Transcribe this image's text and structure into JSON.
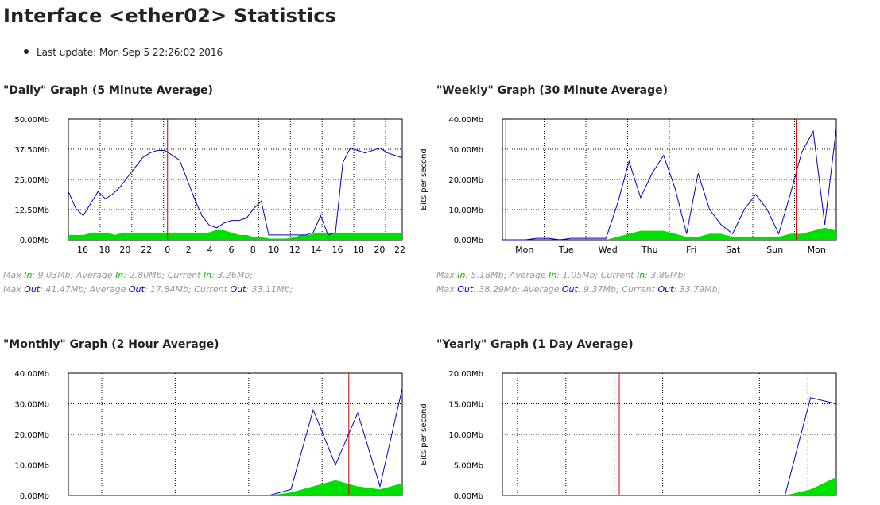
{
  "title": "Interface <ether02> Statistics",
  "last_update": "Last update: Mon Sep 5 22:26:02 2016",
  "colors": {
    "in": "#00e000",
    "out": "#0000c0",
    "marker": "#d00000"
  },
  "ylabel_text": "Bits per second",
  "graphs": {
    "daily": {
      "title": "\"Daily\" Graph (5 Minute Average)",
      "stats": {
        "max_in_label": "Max ",
        "in": "In",
        "max_in_value": ": 9.03Mb; ",
        "avg_in_label": "Average ",
        "avg_in_value": ": 2.80Mb; ",
        "cur_in_label": "Current ",
        "cur_in_value": ": 3.26Mb;",
        "out": "Out",
        "max_out_value": ": 41.47Mb; ",
        "avg_out_value": ": 17.84Mb; ",
        "cur_out_value": ": 33.11Mb;"
      }
    },
    "weekly": {
      "title": "\"Weekly\" Graph (30 Minute Average)",
      "stats": {
        "max_in_label": "Max ",
        "in": "In",
        "max_in_value": ": 5.18Mb; ",
        "avg_in_label": "Average ",
        "avg_in_value": ": 1.05Mb; ",
        "cur_in_label": "Current ",
        "cur_in_value": ": 3.89Mb;",
        "out": "Out",
        "max_out_value": ": 38.29Mb; ",
        "avg_out_value": ": 9.37Mb; ",
        "cur_out_value": ": 33.79Mb;"
      }
    },
    "monthly": {
      "title": "\"Monthly\" Graph (2 Hour Average)"
    },
    "yearly": {
      "title": "\"Yearly\" Graph (1 Day Average)"
    }
  },
  "chart_data": [
    {
      "type": "area",
      "title": "\"Daily\" Graph (5 Minute Average)",
      "ylabel": "",
      "y_ticks": [
        "0.00Mb",
        "12.50Mb",
        "25.00Mb",
        "37.50Mb",
        "50.00Mb"
      ],
      "ylim": [
        0,
        50
      ],
      "x_ticks": [
        "16",
        "18",
        "20",
        "22",
        "0",
        "2",
        "4",
        "6",
        "8",
        "10",
        "12",
        "14",
        "16",
        "18",
        "20",
        "22"
      ],
      "grid": true,
      "series": [
        {
          "name": "In",
          "values": [
            2,
            2,
            2,
            3,
            3,
            3,
            2,
            3,
            3,
            3,
            3,
            3,
            3,
            3,
            3,
            3,
            3,
            3,
            3,
            4,
            4,
            3,
            2,
            2,
            1,
            1,
            0.5,
            0.5,
            0.5,
            1,
            2,
            2,
            3,
            3,
            3,
            3,
            3,
            3,
            3,
            3,
            3,
            3,
            3,
            3
          ]
        },
        {
          "name": "Out",
          "values": [
            20,
            13,
            10,
            15,
            20,
            17,
            19,
            22,
            26,
            30,
            34,
            36,
            37,
            37,
            35,
            33,
            25,
            17,
            10,
            6,
            5,
            7,
            8,
            8,
            9,
            13,
            16,
            2,
            2,
            2,
            2,
            2,
            2,
            3,
            10,
            2,
            3,
            32,
            38,
            37,
            36,
            37,
            38,
            36,
            35,
            34
          ]
        }
      ]
    },
    {
      "type": "area",
      "title": "\"Weekly\" Graph (30 Minute Average)",
      "ylabel": "Bits per second",
      "y_ticks": [
        "0.00Mb",
        "10.00Mb",
        "20.00Mb",
        "30.00Mb",
        "40.00Mb"
      ],
      "ylim": [
        0,
        40
      ],
      "x_ticks": [
        "Mon",
        "Tue",
        "Wed",
        "Thu",
        "Fri",
        "Sat",
        "Sun",
        "Mon"
      ],
      "grid": true,
      "series": [
        {
          "name": "In",
          "values": [
            0,
            0,
            0,
            0,
            0,
            0,
            0,
            0,
            0,
            0,
            1,
            2,
            3,
            3,
            3,
            2,
            1,
            1,
            2,
            2,
            1,
            1,
            1,
            1,
            1,
            2,
            2,
            3,
            4,
            3
          ]
        },
        {
          "name": "Out",
          "values": [
            0,
            0,
            0,
            0.5,
            0.5,
            0,
            0.5,
            0.5,
            0.5,
            0.5,
            12,
            26,
            14,
            22,
            28,
            17,
            2,
            22,
            10,
            5,
            2,
            10,
            15,
            10,
            2,
            15,
            29,
            36,
            5,
            37
          ]
        }
      ]
    },
    {
      "type": "area",
      "title": "\"Monthly\" Graph (2 Hour Average)",
      "ylabel": "",
      "y_ticks": [
        "0.00Mb",
        "10.00Mb",
        "20.00Mb",
        "30.00Mb",
        "40.00Mb"
      ],
      "ylim": [
        0,
        40
      ],
      "grid": true,
      "series": [
        {
          "name": "In",
          "values": [
            0,
            0,
            0,
            0,
            0,
            0,
            0,
            0,
            0,
            0,
            1,
            3,
            5,
            3,
            2,
            4
          ]
        },
        {
          "name": "Out",
          "values": [
            0,
            0,
            0,
            0,
            0,
            0,
            0,
            0,
            0,
            0,
            2,
            28,
            10,
            27,
            3,
            35
          ]
        }
      ]
    },
    {
      "type": "area",
      "title": "\"Yearly\" Graph (1 Day Average)",
      "ylabel": "Bits per second",
      "y_ticks": [
        "0.00Mb",
        "5.00Mb",
        "10.00Mb",
        "15.00Mb",
        "20.00Mb"
      ],
      "ylim": [
        0,
        20
      ],
      "grid": true,
      "series": [
        {
          "name": "In",
          "values": [
            0,
            0,
            0,
            0,
            0,
            0,
            0,
            0,
            0,
            0,
            0,
            0,
            1,
            3
          ]
        },
        {
          "name": "Out",
          "values": [
            0,
            0,
            0,
            0,
            0,
            0,
            0,
            0,
            0,
            0,
            0,
            0,
            16,
            15
          ]
        }
      ]
    }
  ]
}
